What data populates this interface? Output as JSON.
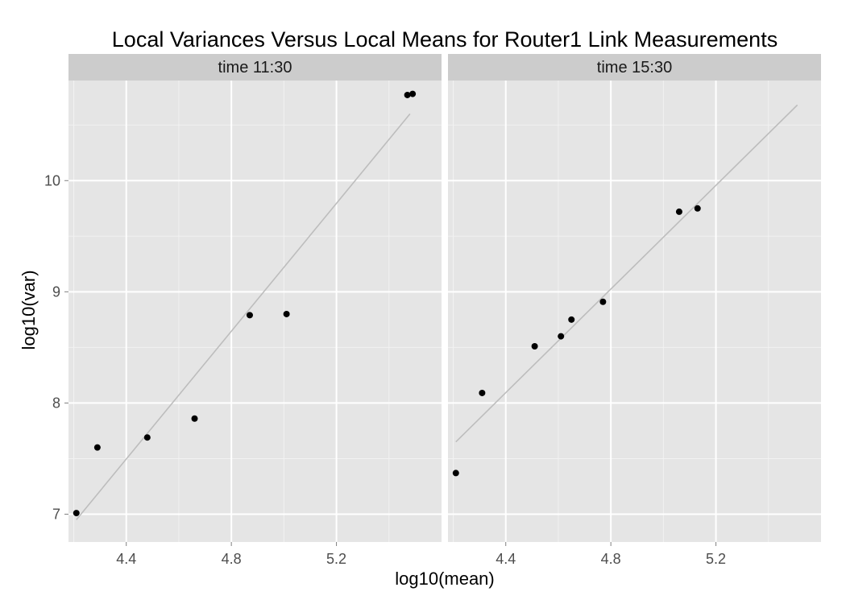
{
  "chart_data": {
    "type": "scatter",
    "title": "Local Variances Versus Local Means for Router1 Link Measurements",
    "xlabel": "log10(mean)",
    "ylabel": "log10(var)",
    "xlim": [
      4.18,
      5.6
    ],
    "ylim": [
      6.75,
      10.9
    ],
    "x_ticks": [
      4.4,
      4.8,
      5.2
    ],
    "x_tick_labels": [
      "4.4",
      "4.8",
      "5.2"
    ],
    "y_ticks": [
      7,
      8,
      9,
      10
    ],
    "y_tick_labels": [
      "7",
      "8",
      "9",
      "10"
    ],
    "grid": true,
    "panel_background": "#e5e5e5",
    "strip_background": "#cccccc",
    "grid_color": "#ffffff",
    "point_color": "#000000",
    "fit_line_color": "#bdbdbd",
    "panels": [
      {
        "strip_label": "time 11:30",
        "points": [
          {
            "x": 4.21,
            "y": 7.01
          },
          {
            "x": 4.29,
            "y": 7.6
          },
          {
            "x": 4.48,
            "y": 7.69
          },
          {
            "x": 4.66,
            "y": 7.86
          },
          {
            "x": 4.87,
            "y": 8.79
          },
          {
            "x": 5.01,
            "y": 8.8
          },
          {
            "x": 5.47,
            "y": 10.77
          },
          {
            "x": 5.49,
            "y": 10.78
          }
        ],
        "fit_line": {
          "x": [
            4.21,
            5.48
          ],
          "y": [
            6.95,
            10.6
          ]
        }
      },
      {
        "strip_label": "time 15:30",
        "points": [
          {
            "x": 4.21,
            "y": 7.37
          },
          {
            "x": 4.31,
            "y": 8.09
          },
          {
            "x": 4.51,
            "y": 8.51
          },
          {
            "x": 4.61,
            "y": 8.6
          },
          {
            "x": 4.65,
            "y": 8.75
          },
          {
            "x": 4.77,
            "y": 8.91
          },
          {
            "x": 5.06,
            "y": 9.72
          },
          {
            "x": 5.13,
            "y": 9.75
          }
        ],
        "fit_line": {
          "x": [
            4.21,
            5.51
          ],
          "y": [
            7.65,
            10.68
          ]
        }
      }
    ]
  }
}
